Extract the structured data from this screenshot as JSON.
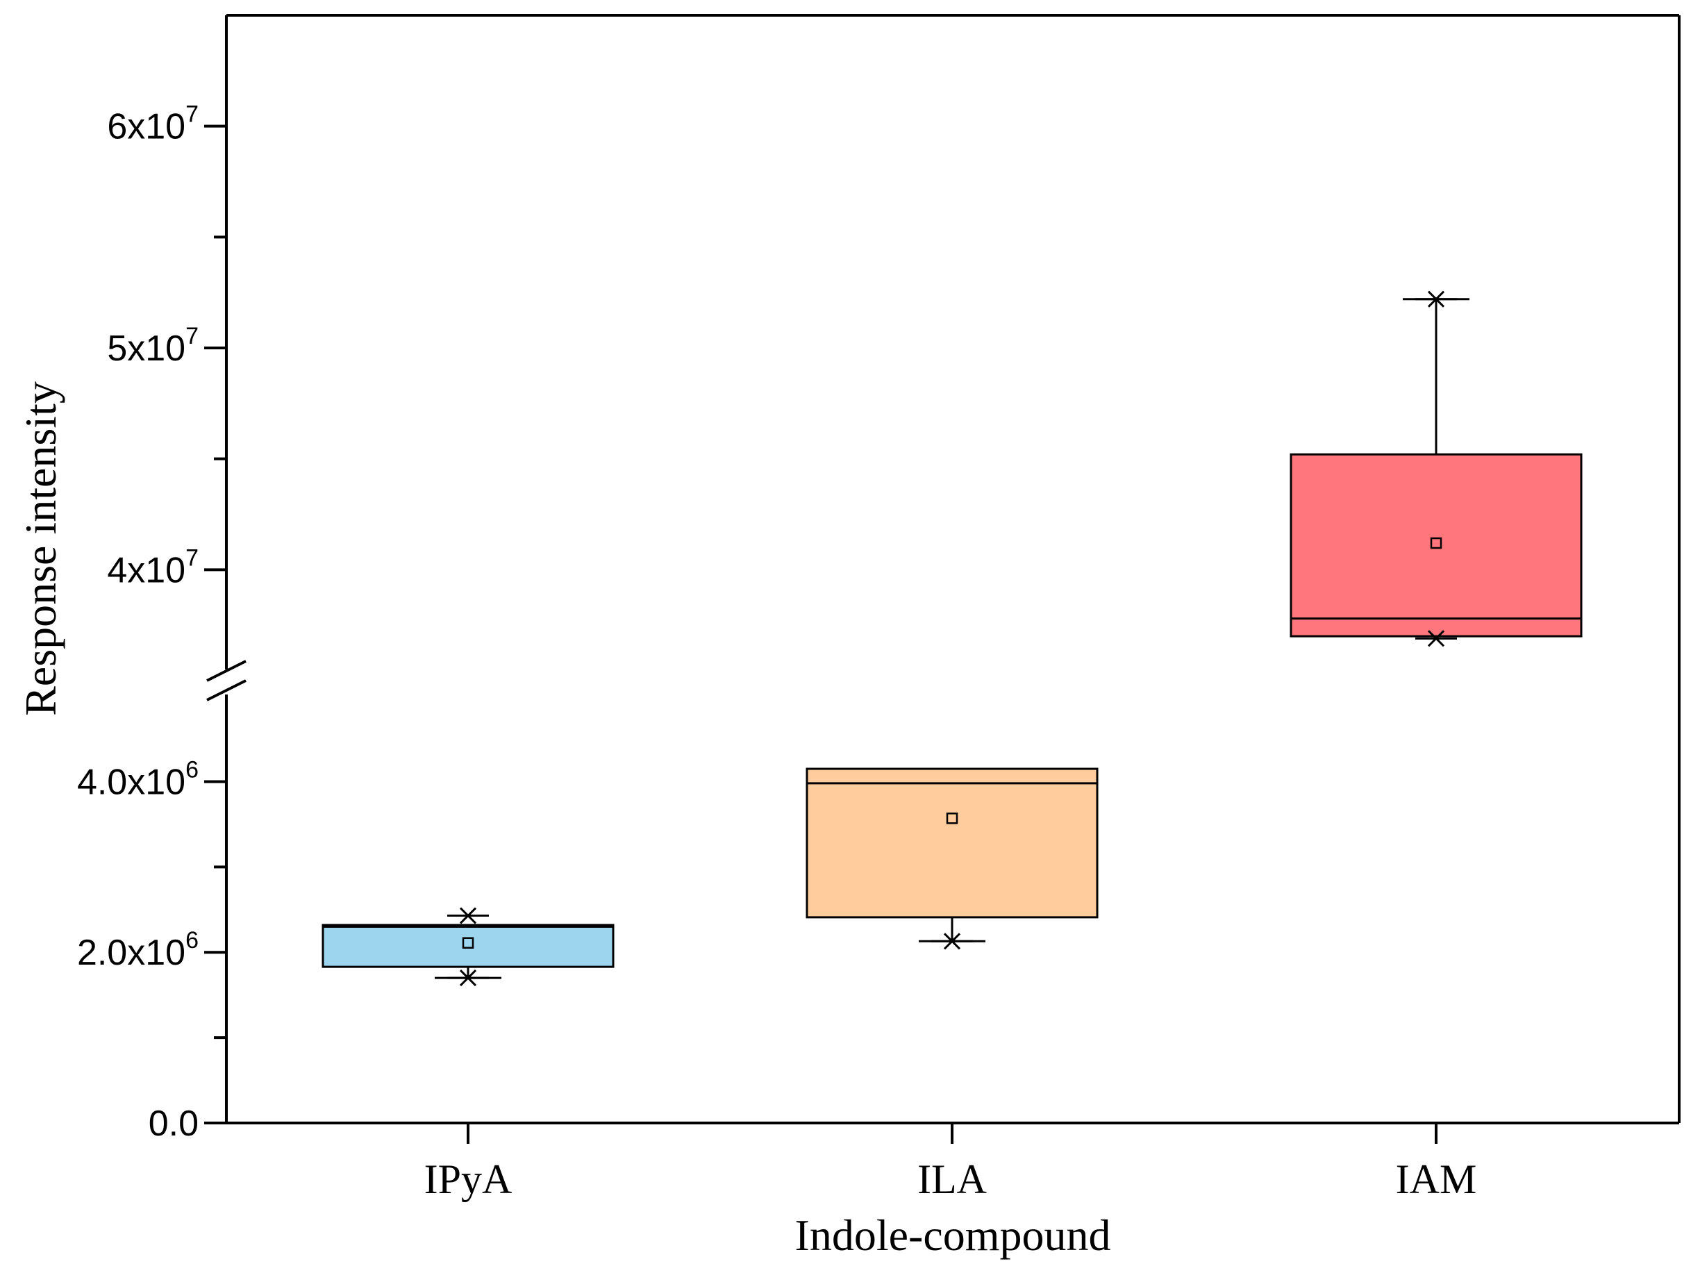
{
  "chart_data": {
    "type": "box",
    "title": "",
    "xlabel": "Indole-compound",
    "ylabel": "Response intensity",
    "axis_break": true,
    "lower_segment": {
      "ylim": [
        0,
        5200000
      ],
      "ticks": [
        {
          "value": 0,
          "label": "0.0",
          "exp": ""
        },
        {
          "value": 2000000,
          "label": "2.0x10",
          "exp": "6"
        },
        {
          "value": 4000000,
          "label": "4.0x10",
          "exp": "6"
        }
      ],
      "minor_ticks": [
        1000000,
        3000000
      ]
    },
    "upper_segment": {
      "ylim": [
        35000000,
        65000000
      ],
      "ticks": [
        {
          "value": 40000000,
          "label": "4x10",
          "exp": "7"
        },
        {
          "value": 50000000,
          "label": "5x10",
          "exp": "7"
        },
        {
          "value": 60000000,
          "label": "6x10",
          "exp": "7"
        }
      ],
      "minor_ticks": [
        45000000,
        55000000
      ]
    },
    "categories": [
      "IPyA",
      "ILA",
      "IAM"
    ],
    "boxes": [
      {
        "name": "IPyA",
        "color": "#9DD5EE",
        "q1": 1830000,
        "median": 2300000,
        "q3": 2320000,
        "mean": 2110000,
        "whisker_low": 1700000,
        "whisker_high": 2320000,
        "extremes": [
          1700000,
          2430000
        ]
      },
      {
        "name": "ILA",
        "color": "#FFCC9E",
        "q1": 2410000,
        "median": 3980000,
        "q3": 4150000,
        "mean": 3570000,
        "whisker_low": 2130000,
        "whisker_high": 4150000,
        "extremes": [
          2130000
        ]
      },
      {
        "name": "IAM",
        "color": "#FF777D",
        "q1": 37000000,
        "median": 37800000,
        "q3": 45200000,
        "mean": 41200000,
        "whisker_low": 37000000,
        "whisker_high": 52200000,
        "extremes": [
          36900000,
          52200000
        ]
      }
    ]
  }
}
